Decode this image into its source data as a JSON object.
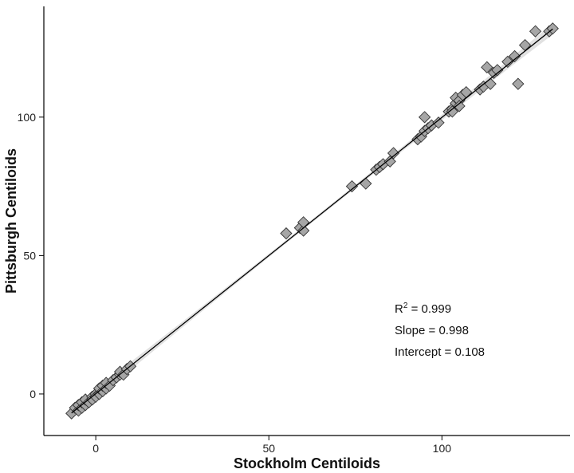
{
  "chart_data": {
    "type": "scatter",
    "xlabel": "Stockholm Centiloids",
    "ylabel": "Pittsburgh Centiloids",
    "xlim": [
      -15,
      137
    ],
    "ylim": [
      -15,
      140
    ],
    "x_ticks": [
      0,
      50,
      100
    ],
    "y_ticks": [
      0,
      50,
      100
    ],
    "grid": false,
    "marker": "diamond",
    "marker_color": "#a6a6a6",
    "line_color": "#000000",
    "annotations": {
      "r2_label": "R",
      "r2_superscript": "2",
      "r2_value": " = 0.999",
      "slope": "Slope = 0.998",
      "intercept": "Intercept = 0.108"
    },
    "fit": {
      "slope": 0.998,
      "intercept": 0.108
    },
    "series": [
      {
        "points": [
          [
            -7,
            -7
          ],
          [
            -6,
            -5
          ],
          [
            -5,
            -6
          ],
          [
            -5,
            -4
          ],
          [
            -4,
            -5
          ],
          [
            -4,
            -3
          ],
          [
            -3,
            -4
          ],
          [
            -3,
            -2
          ],
          [
            -2,
            -3
          ],
          [
            -1,
            -1
          ],
          [
            -1,
            -2
          ],
          [
            0,
            0
          ],
          [
            0,
            -1
          ],
          [
            1,
            0
          ],
          [
            1,
            2
          ],
          [
            2,
            1
          ],
          [
            2,
            3
          ],
          [
            3,
            2
          ],
          [
            3,
            4
          ],
          [
            4,
            3
          ],
          [
            5,
            5
          ],
          [
            6,
            6
          ],
          [
            7,
            7
          ],
          [
            7,
            8
          ],
          [
            8,
            7
          ],
          [
            9,
            9
          ],
          [
            10,
            10
          ],
          [
            55,
            58
          ],
          [
            59,
            60
          ],
          [
            60,
            59
          ],
          [
            60,
            62
          ],
          [
            74,
            75
          ],
          [
            78,
            76
          ],
          [
            81,
            81
          ],
          [
            82,
            82
          ],
          [
            83,
            83
          ],
          [
            85,
            84
          ],
          [
            86,
            87
          ],
          [
            93,
            92
          ],
          [
            94,
            93
          ],
          [
            95,
            95
          ],
          [
            95,
            100
          ],
          [
            96,
            96
          ],
          [
            97,
            97
          ],
          [
            99,
            98
          ],
          [
            102,
            102
          ],
          [
            103,
            103
          ],
          [
            103,
            102
          ],
          [
            104,
            105
          ],
          [
            104,
            107
          ],
          [
            105,
            106
          ],
          [
            105,
            104
          ],
          [
            106,
            108
          ],
          [
            107,
            109
          ],
          [
            111,
            110
          ],
          [
            112,
            111
          ],
          [
            113,
            118
          ],
          [
            114,
            112
          ],
          [
            115,
            116
          ],
          [
            116,
            117
          ],
          [
            119,
            120
          ],
          [
            121,
            122
          ],
          [
            122,
            112
          ],
          [
            124,
            126
          ],
          [
            127,
            131
          ],
          [
            131,
            131
          ],
          [
            132,
            132
          ]
        ]
      }
    ]
  }
}
